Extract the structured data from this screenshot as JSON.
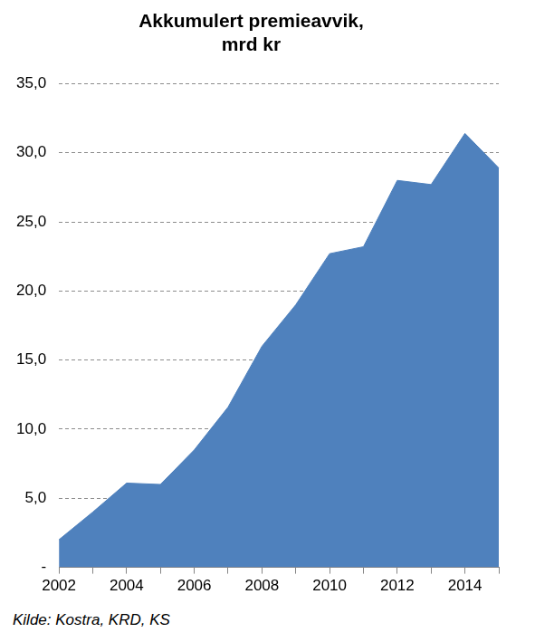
{
  "chart_data": {
    "type": "area",
    "title": [
      "Akkumulert premieavvik,",
      "mrd kr"
    ],
    "source": "Kilde: Kostra, KRD, KS",
    "categories": [
      "2002",
      null,
      "2004",
      null,
      "2006",
      null,
      "2008",
      null,
      "2010",
      null,
      "2012",
      null,
      "2014",
      null
    ],
    "values": [
      2.0,
      4.0,
      6.1,
      6.0,
      8.5,
      11.6,
      16.0,
      19.0,
      22.7,
      23.2,
      28.0,
      27.7,
      31.4,
      28.9
    ],
    "color": "#4f81bd",
    "ylim": [
      0,
      35
    ],
    "yticks": [
      {
        "value": 0,
        "label": "-"
      },
      {
        "value": 5,
        "label": "5,0"
      },
      {
        "value": 10,
        "label": "10,0"
      },
      {
        "value": 15,
        "label": "15,0"
      },
      {
        "value": 20,
        "label": "20,0"
      },
      {
        "value": 25,
        "label": "25,0"
      },
      {
        "value": 30,
        "label": "30,0"
      },
      {
        "value": 35,
        "label": "35,0"
      }
    ],
    "grid": true
  }
}
